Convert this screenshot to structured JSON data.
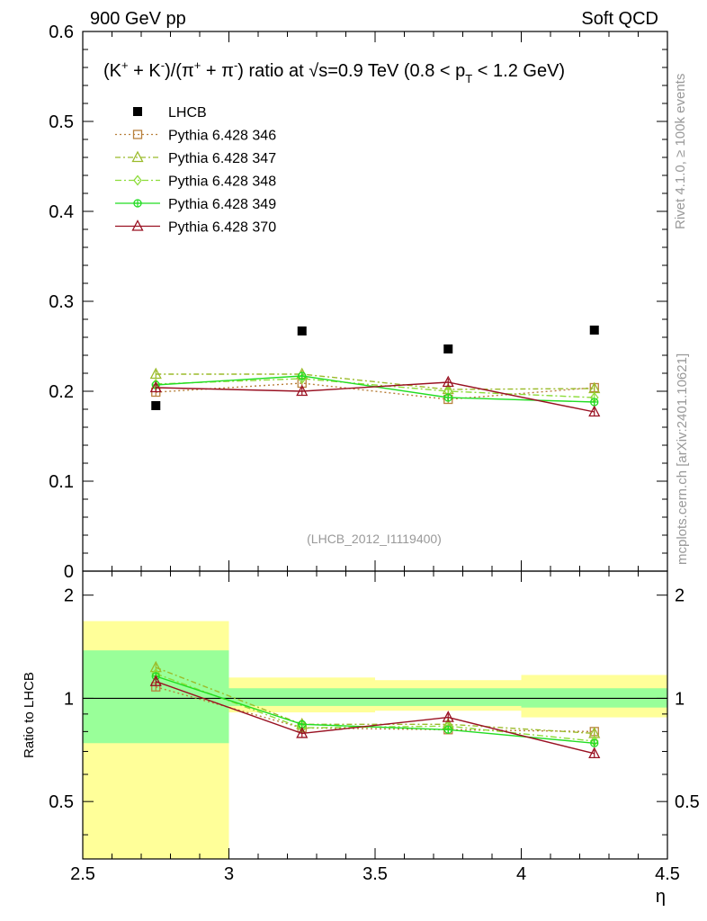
{
  "header": {
    "left": "900 GeV pp",
    "right": "Soft QCD"
  },
  "side_labels": {
    "top": "Rivet 4.1.0, ≥ 100k events",
    "bottom": "mcplots.cern.ch [arXiv:2401.10621]"
  },
  "chart_data": [
    {
      "type": "scatter",
      "panel": "main",
      "title_parts": {
        "lead": "(K",
        "kplus": "+",
        "plus1": " + K",
        "kminus": "-",
        "slash": ")/(π",
        "piplus": "+",
        "plus2": " + π",
        "piminus": "-",
        "ratio_at": ") ratio at ",
        "sqrt": "√",
        "s_val": "s=0.9 TeV (0.8 < p",
        "sub_t": "T",
        "end": " < 1.2 GeV)"
      },
      "analysis_id": "(LHCB_2012_I1119400)",
      "xlabel": "η",
      "ylabel": "",
      "xlim": [
        2.5,
        4.5
      ],
      "ylim": [
        0,
        0.6
      ],
      "y_ticks": [
        "0",
        "0.1",
        "0.2",
        "0.3",
        "0.4",
        "0.5",
        "0.6"
      ],
      "x": [
        2.75,
        3.25,
        3.75,
        4.25
      ],
      "x_bins": [
        [
          2.5,
          3.0
        ],
        [
          3.0,
          3.5
        ],
        [
          3.5,
          4.0
        ],
        [
          4.0,
          4.5
        ]
      ],
      "data": {
        "name": "LHCB",
        "values": [
          0.184,
          0.267,
          0.247,
          0.268
        ],
        "color": "#000000",
        "marker": "square"
      },
      "series": [
        {
          "name": "Pythia 6.428 346",
          "values": [
            0.199,
            0.209,
            0.191,
            0.204
          ],
          "errors": [
            0.004,
            0.004,
            0.004,
            0.004
          ],
          "color": "#b8803c",
          "dash": "2,3",
          "marker": "square-open"
        },
        {
          "name": "Pythia 6.428 347",
          "values": [
            0.219,
            0.219,
            0.202,
            0.203
          ],
          "errors": [
            0.004,
            0.004,
            0.004,
            0.004
          ],
          "color": "#9bbb2a",
          "dash": "6,3,2,3",
          "marker": "triangle-open"
        },
        {
          "name": "Pythia 6.428 348",
          "values": [
            0.208,
            0.214,
            0.2,
            0.193
          ],
          "errors": [
            0.004,
            0.004,
            0.004,
            0.004
          ],
          "color": "#8ddc3a",
          "dash": "7,3,2,3",
          "marker": "diamond-open"
        },
        {
          "name": "Pythia 6.428 349",
          "values": [
            0.207,
            0.217,
            0.193,
            0.188
          ],
          "errors": [
            0.004,
            0.004,
            0.004,
            0.004
          ],
          "color": "#22dd22",
          "dash": "",
          "marker": "circle-cross"
        },
        {
          "name": "Pythia 6.428 370",
          "values": [
            0.204,
            0.2,
            0.21,
            0.177
          ],
          "errors": [
            0.004,
            0.004,
            0.004,
            0.005
          ],
          "color": "#991122",
          "dash": "",
          "marker": "triangle-open"
        }
      ]
    },
    {
      "type": "scatter",
      "panel": "ratio",
      "ylabel": "Ratio to LHCB",
      "xlabel": "η",
      "xlim": [
        2.5,
        4.5
      ],
      "ylim": [
        0.34,
        2.35
      ],
      "y_scale": "log",
      "y_ticks": [
        "0.5",
        "1",
        "2"
      ],
      "x_ticks": [
        "2.5",
        "3",
        "3.5",
        "4",
        "4.5"
      ],
      "band_inner": [
        [
          0.74,
          1.38
        ],
        [
          0.95,
          1.07
        ],
        [
          0.95,
          1.07
        ],
        [
          0.94,
          1.07
        ]
      ],
      "band_outer": [
        [
          0.34,
          1.68
        ],
        [
          0.91,
          1.15
        ],
        [
          0.92,
          1.13
        ],
        [
          0.88,
          1.17
        ]
      ],
      "series": [
        {
          "name": "Pythia 6.428 346",
          "values": [
            1.08,
            0.82,
            0.81,
            0.8
          ]
        },
        {
          "name": "Pythia 6.428 347",
          "values": [
            1.23,
            0.84,
            0.84,
            0.79
          ]
        },
        {
          "name": "Pythia 6.428 348",
          "values": [
            1.18,
            0.82,
            0.83,
            0.75
          ]
        },
        {
          "name": "Pythia 6.428 349",
          "values": [
            1.16,
            0.84,
            0.81,
            0.74
          ]
        },
        {
          "name": "Pythia 6.428 370",
          "values": [
            1.12,
            0.79,
            0.88,
            0.69
          ]
        }
      ]
    }
  ]
}
